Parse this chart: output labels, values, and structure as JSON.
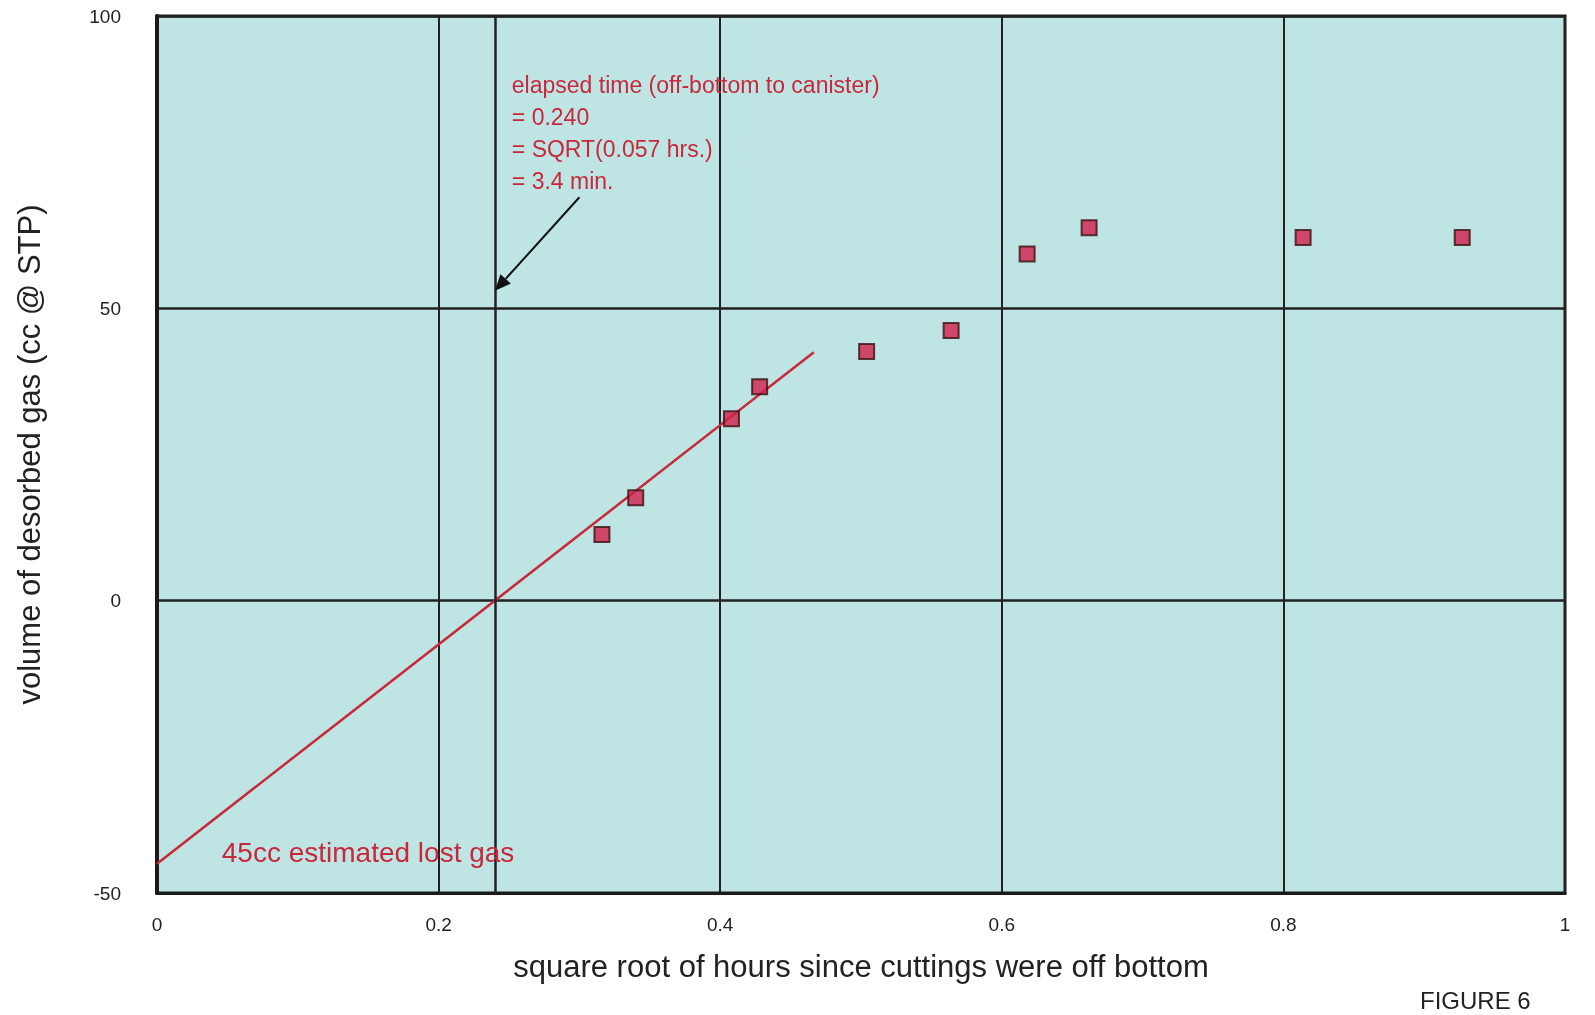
{
  "chart_data": {
    "type": "scatter",
    "xlabel": "square root of hours since cuttings were off bottom",
    "ylabel": "volume of desorbed gas (cc @ STP)",
    "xlim": [
      0,
      1
    ],
    "xticks": [
      0,
      0.2,
      0.4,
      0.6,
      0.8,
      1
    ],
    "ylim": [
      -50,
      100
    ],
    "yticks": [
      -50,
      0,
      50,
      100
    ],
    "grid": true,
    "marker": "square",
    "series": [
      {
        "color": "#d21f4b",
        "x": [
          0.316,
          0.34,
          0.408,
          0.428,
          0.504,
          0.564,
          0.618,
          0.662,
          0.814,
          0.927
        ],
        "values": [
          11.3,
          17.6,
          31.1,
          36.6,
          42.6,
          46.2,
          59.3,
          63.8,
          62.1,
          62.1
        ]
      },
      {
        "type": "line",
        "color": "#c8283c",
        "marker": "none",
        "line_style": "solid",
        "x": [
          0,
          0.4665
        ],
        "values": [
          -45,
          42.5
        ]
      }
    ],
    "ref_lines": [
      {
        "axis": "x",
        "value": 0.24,
        "color": "#222222",
        "line_style": "solid"
      }
    ],
    "annotations": [
      "elapsed time (off-bottom to canister)\n= 0.240\n= SQRT(0.057 hrs.)\n= 3.4 min.",
      {
        "text": "45cc estimated lost gas",
        "x": 0,
        "y": -45
      },
      "FIGURE 6"
    ]
  }
}
